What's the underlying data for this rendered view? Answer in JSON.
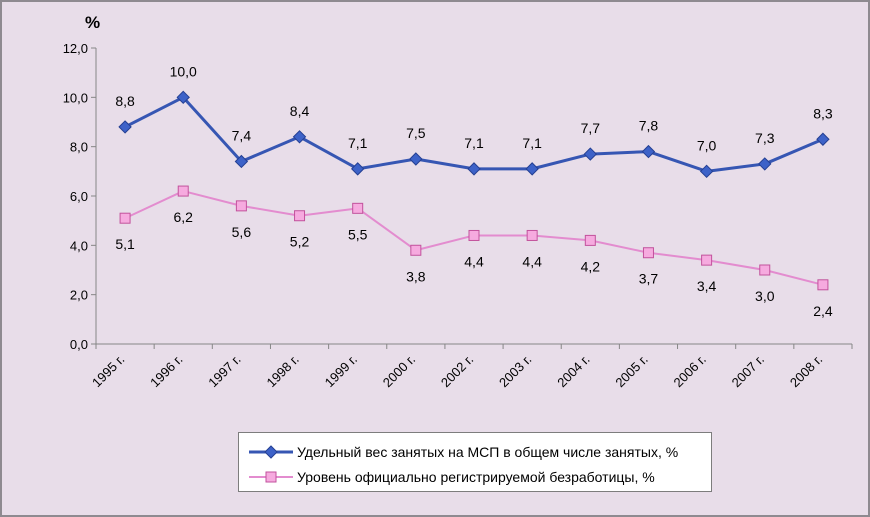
{
  "chart_data": {
    "type": "line",
    "title": "",
    "xlabel": "",
    "ylabel": "%",
    "ylim": [
      0,
      12
    ],
    "yticks": [
      0,
      2,
      4,
      6,
      8,
      10,
      12
    ],
    "ytick_labels": [
      "0,0",
      "2,0",
      "4,0",
      "6,0",
      "8,0",
      "10,0",
      "12,0"
    ],
    "grid": false,
    "legend_position": "bottom",
    "categories": [
      "1995 г.",
      "1996 г.",
      "1997 г.",
      "1998 г.",
      "1999 г.",
      "2000 г.",
      "2002 г.",
      "2003 г.",
      "2004 г.",
      "2005 г.",
      "2006 г.",
      "2007 г.",
      "2008 г."
    ],
    "series": [
      {
        "name": "Удельный вес занятых на МСП в общем числе занятых, %",
        "marker": "diamond",
        "label_position": "above",
        "line_color": "#3656b3",
        "marker_fill": "#3d62c8",
        "marker_stroke": "#243f92",
        "values": [
          8.8,
          10.0,
          7.4,
          8.4,
          7.1,
          7.5,
          7.1,
          7.1,
          7.7,
          7.8,
          7.0,
          7.3,
          8.3
        ],
        "labels": [
          "8,8",
          "10,0",
          "7,4",
          "8,4",
          "7,1",
          "7,5",
          "7,1",
          "7,1",
          "7,7",
          "7,8",
          "7,0",
          "7,3",
          "8,3"
        ]
      },
      {
        "name": "Уровень официально регистрируемой безработицы, %",
        "marker": "square",
        "label_position": "below",
        "line_color": "#e38ccf",
        "marker_fill": "#f6aadf",
        "marker_stroke": "#c2529c",
        "values": [
          5.1,
          6.2,
          5.6,
          5.2,
          5.5,
          3.8,
          4.4,
          4.4,
          4.2,
          3.7,
          3.4,
          3.0,
          2.4
        ],
        "labels": [
          "5,1",
          "6,2",
          "5,6",
          "5,2",
          "5,5",
          "3,8",
          "4,4",
          "4,4",
          "4,2",
          "3,7",
          "3,4",
          "3,0",
          "2,4"
        ]
      }
    ]
  }
}
